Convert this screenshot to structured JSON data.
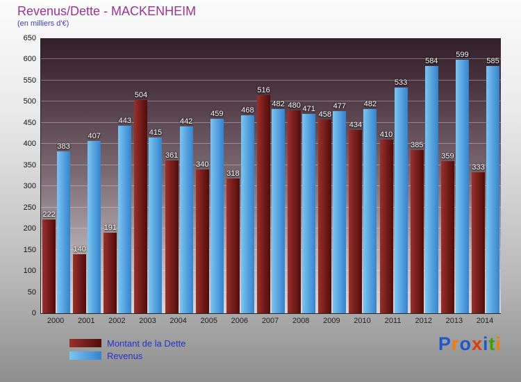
{
  "header": {
    "title": "Revenus/Dette - MACKENHEIM",
    "subtitle": "(en milliers d'€)"
  },
  "chart_data": {
    "type": "bar",
    "title": "Revenus/Dette - MACKENHEIM",
    "subtitle": "(en milliers d'€)",
    "categories": [
      "2000",
      "2001",
      "2002",
      "2003",
      "2004",
      "2005",
      "2006",
      "2007",
      "2008",
      "2009",
      "2010",
      "2011",
      "2012",
      "2013",
      "2014"
    ],
    "series": [
      {
        "name": "Montant de la Dette",
        "color_light": "#9a2f2b",
        "color_dark": "#4f0d0b",
        "values": [
          222,
          140,
          191,
          504,
          361,
          340,
          318,
          516,
          480,
          458,
          434,
          410,
          385,
          359,
          333
        ]
      },
      {
        "name": "Revenus",
        "color_light": "#7cc4f0",
        "color_dark": "#3583cf",
        "values": [
          383,
          407,
          443,
          415,
          442,
          459,
          468,
          482,
          471,
          477,
          482,
          533,
          584,
          599,
          585
        ]
      }
    ],
    "ylim": [
      0,
      650
    ],
    "ytick_step": 50,
    "grid": true,
    "legend_position": "bottom-left",
    "value_labels": true,
    "xlabel": "",
    "ylabel": ""
  },
  "legend": {
    "items": [
      "Montant de la Dette",
      "Revenus"
    ]
  },
  "logo": {
    "text": "Proxiti",
    "letters": [
      {
        "ch": "P",
        "color": "#2057c9"
      },
      {
        "ch": "r",
        "color": "#ef7d0c"
      },
      {
        "ch": "o",
        "color": "#2057c9"
      },
      {
        "ch": "x",
        "color": "#e03a0e"
      },
      {
        "ch": "i",
        "color": "#2057c9"
      },
      {
        "ch": "t",
        "color": "#3aa010"
      },
      {
        "ch": "i",
        "color": "#ef7d0c"
      }
    ]
  }
}
